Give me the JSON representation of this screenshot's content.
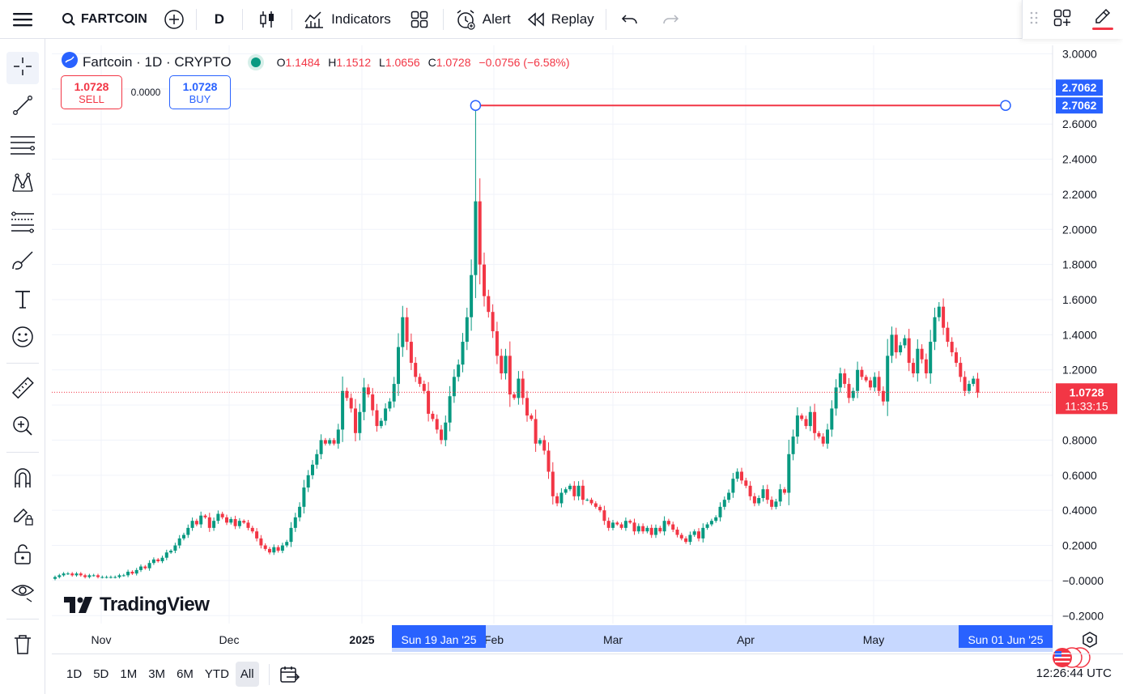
{
  "topbar": {
    "symbol": "FARTCOIN",
    "interval": "D",
    "indicators_label": "Indicators",
    "alert_label": "Alert",
    "replay_label": "Replay"
  },
  "legend": {
    "title": "Fartcoin · 1D · CRYPTO",
    "open_label": "O",
    "open": "1.1484",
    "high_label": "H",
    "high": "1.1512",
    "low_label": "L",
    "low": "1.0656",
    "close_label": "C",
    "close": "1.0728",
    "change": "−0.0756 (−6.58%)"
  },
  "trade": {
    "sell_price": "1.0728",
    "sell_label": "SELL",
    "spread": "0.0000",
    "buy_price": "1.0728",
    "buy_label": "BUY"
  },
  "branding": {
    "logo_text": "TradingView"
  },
  "price_axis": {
    "labels": [
      "3.0000",
      "2.8000",
      "2.6000",
      "2.4000",
      "2.2000",
      "2.0000",
      "1.8000",
      "1.6000",
      "1.4000",
      "1.2000",
      "1.0000",
      "0.8000",
      "0.6000",
      "0.4000",
      "0.2000",
      "−0.0000",
      "−0.2000"
    ],
    "horizontal_line_label": "2.7062",
    "current_price_label": "1.0728",
    "countdown": "11:33:15"
  },
  "time_axis": {
    "labels": [
      "Nov",
      "Dec",
      "2025",
      "Feb",
      "Mar",
      "Apr",
      "May"
    ],
    "range_start": "Sun 19 Jan '25",
    "range_end": "Sun 01 Jun '25"
  },
  "bottombar": {
    "ranges": [
      "1D",
      "5D",
      "1M",
      "3M",
      "6M",
      "YTD",
      "All"
    ],
    "active_range": "All",
    "clock": "12:26:44 UTC"
  },
  "colors": {
    "up": "#089981",
    "down": "#f23645",
    "accent": "#2962ff",
    "drawing_line": "#f23645"
  },
  "chart_data": {
    "type": "candlestick",
    "interval": "1D",
    "ylim": [
      -0.2,
      3.0
    ],
    "horizontal_line": 2.7062,
    "current_price": 1.0728,
    "peak_date": "2025-01-19",
    "last_date": "2025-06-01",
    "closes": [
      0.02,
      0.03,
      0.04,
      0.04,
      0.03,
      0.04,
      0.03,
      0.02,
      0.03,
      0.03,
      0.02,
      0.02,
      0.02,
      0.02,
      0.02,
      0.03,
      0.03,
      0.05,
      0.04,
      0.06,
      0.08,
      0.07,
      0.1,
      0.12,
      0.11,
      0.13,
      0.16,
      0.17,
      0.2,
      0.24,
      0.26,
      0.3,
      0.34,
      0.32,
      0.37,
      0.36,
      0.3,
      0.34,
      0.38,
      0.36,
      0.33,
      0.35,
      0.31,
      0.34,
      0.33,
      0.3,
      0.28,
      0.24,
      0.2,
      0.18,
      0.16,
      0.19,
      0.17,
      0.2,
      0.22,
      0.3,
      0.36,
      0.42,
      0.53,
      0.6,
      0.66,
      0.72,
      0.8,
      0.78,
      0.8,
      0.78,
      0.86,
      1.08,
      1.04,
      0.98,
      0.84,
      0.96,
      1.1,
      1.06,
      0.97,
      0.88,
      0.91,
      0.98,
      1.02,
      1.12,
      1.33,
      1.5,
      1.36,
      1.24,
      1.16,
      1.12,
      1.08,
      0.95,
      0.92,
      0.86,
      0.8,
      0.9,
      1.05,
      1.16,
      1.23,
      1.36,
      1.5,
      1.74,
      2.16,
      1.8,
      1.62,
      1.53,
      1.42,
      1.28,
      1.18,
      1.28,
      1.06,
      1.04,
      1.15,
      1.04,
      0.94,
      0.92,
      0.78,
      0.8,
      0.74,
      0.62,
      0.48,
      0.44,
      0.5,
      0.52,
      0.54,
      0.48,
      0.54,
      0.46,
      0.46,
      0.44,
      0.42,
      0.4,
      0.34,
      0.3,
      0.33,
      0.32,
      0.3,
      0.34,
      0.33,
      0.28,
      0.31,
      0.28,
      0.3,
      0.26,
      0.3,
      0.28,
      0.34,
      0.32,
      0.29,
      0.26,
      0.24,
      0.22,
      0.26,
      0.28,
      0.24,
      0.3,
      0.32,
      0.34,
      0.36,
      0.42,
      0.46,
      0.5,
      0.58,
      0.62,
      0.57,
      0.54,
      0.48,
      0.44,
      0.47,
      0.52,
      0.46,
      0.42,
      0.45,
      0.52,
      0.5,
      0.72,
      0.82,
      0.94,
      0.92,
      0.88,
      0.96,
      0.84,
      0.82,
      0.78,
      0.86,
      0.98,
      1.1,
      1.18,
      1.12,
      1.04,
      1.08,
      1.2,
      1.16,
      1.14,
      1.1,
      1.16,
      1.08,
      1.02,
      1.28,
      1.4,
      1.3,
      1.34,
      1.38,
      1.24,
      1.18,
      1.32,
      1.26,
      1.18,
      1.36,
      1.5,
      1.56,
      1.44,
      1.36,
      1.3,
      1.24,
      1.16,
      1.08,
      1.12,
      1.15,
      1.07
    ]
  }
}
